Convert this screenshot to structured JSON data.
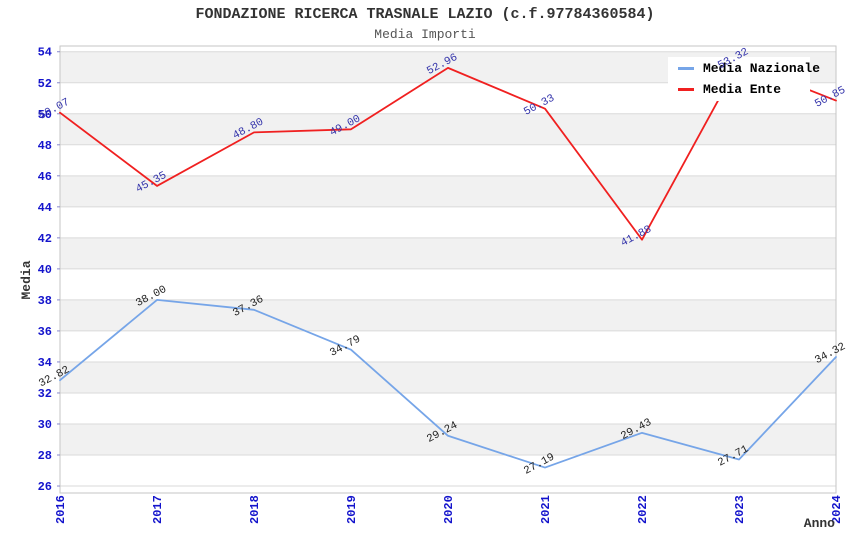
{
  "title": "FONDAZIONE RICERCA TRASNALE LAZIO (c.f.97784360584)",
  "subtitle": "Media Importi",
  "legend": [
    {
      "label": "Media Nazionale",
      "color": "#76a5e8"
    },
    {
      "label": "Media Ente",
      "color": "#f02020"
    }
  ],
  "chart_data": {
    "type": "line",
    "x": [
      2016,
      2017,
      2018,
      2019,
      2020,
      2021,
      2022,
      2023,
      2024
    ],
    "series": [
      {
        "name": "Media Nazionale",
        "color": "#76a5e8",
        "label_color": "#222222",
        "values": [
          32.82,
          38.0,
          37.36,
          34.79,
          29.24,
          27.19,
          29.43,
          27.71,
          34.32
        ]
      },
      {
        "name": "Media Ente",
        "color": "#f02020",
        "label_color": "#3333aa",
        "values": [
          50.07,
          45.35,
          48.8,
          49.0,
          52.96,
          50.33,
          41.88,
          53.32,
          50.85
        ]
      }
    ],
    "xlabel": "Anno",
    "ylabel": "Media",
    "ylim": [
      26,
      54
    ],
    "ytick_step": 2,
    "grid": true,
    "alternating_bands": true,
    "legend_position": "top-right",
    "point_labels_decimals": 2,
    "colors": {
      "band": "#f1f1f1",
      "gridline": "#dadada",
      "plot_border": "#c6c6c6",
      "tick_label": "#1414cc",
      "tick_mark": "#8888cc",
      "title": "#333333",
      "subtitle": "#555555",
      "axis_title": "#333333"
    }
  }
}
